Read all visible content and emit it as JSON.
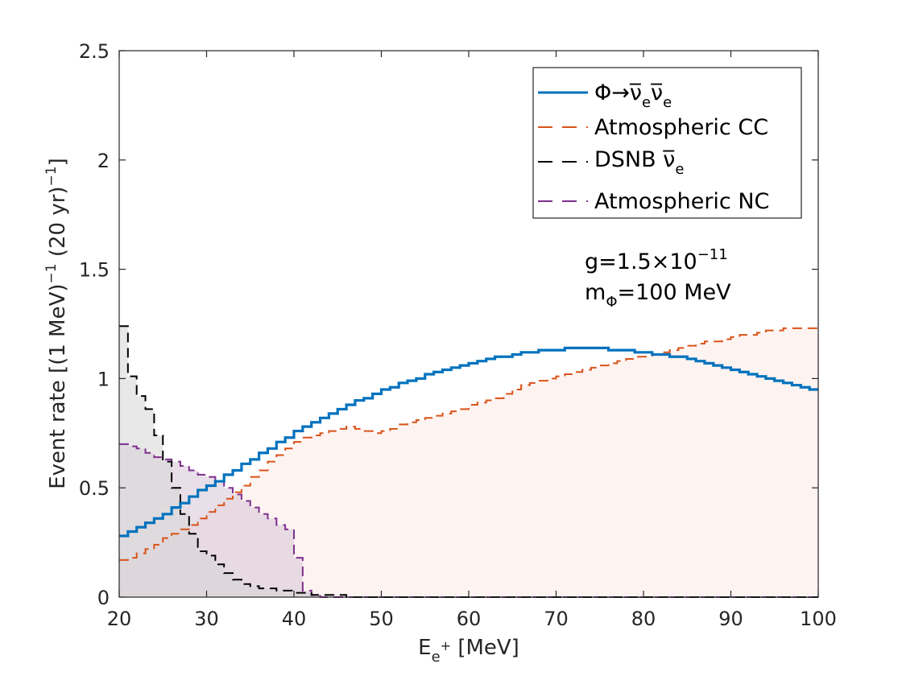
{
  "chart_data": {
    "type": "area",
    "title": "",
    "xlabel": {
      "base": "E",
      "sub": "e",
      "sup": "+",
      "rest": " [MeV]"
    },
    "ylabel": {
      "p1": "Event rate [(1 MeV)",
      "sup1": "−1",
      "p2": " (20 yr)",
      "sup2": "−1",
      "p3": "]"
    },
    "xlim": [
      20,
      100
    ],
    "ylim": [
      0,
      2.5
    ],
    "xticks": [
      20,
      30,
      40,
      50,
      60,
      70,
      80,
      90,
      100
    ],
    "yticks": [
      0,
      0.5,
      1,
      1.5,
      2,
      2.5
    ],
    "xtick_labels": [
      "20",
      "30",
      "40",
      "50",
      "60",
      "70",
      "80",
      "90",
      "100"
    ],
    "ytick_labels": [
      "0",
      "0.5",
      "1",
      "1.5",
      "2",
      "2.5"
    ],
    "grid": false,
    "legend_position": "top-right",
    "bin_width": 1,
    "series": [
      {
        "name": "atmospheric-cc",
        "legend": "Atmospheric CC",
        "color": "#D95319",
        "fill": "#FBEAE5",
        "dashed": true,
        "values": [
          0.17,
          0.18,
          0.2,
          0.22,
          0.24,
          0.27,
          0.29,
          0.31,
          0.33,
          0.36,
          0.39,
          0.42,
          0.45,
          0.48,
          0.51,
          0.55,
          0.58,
          0.62,
          0.65,
          0.68,
          0.71,
          0.73,
          0.74,
          0.75,
          0.76,
          0.77,
          0.78,
          0.77,
          0.76,
          0.75,
          0.76,
          0.77,
          0.79,
          0.8,
          0.81,
          0.82,
          0.83,
          0.84,
          0.85,
          0.86,
          0.88,
          0.89,
          0.9,
          0.91,
          0.93,
          0.95,
          0.97,
          0.98,
          0.99,
          1.0,
          1.01,
          1.02,
          1.03,
          1.04,
          1.05,
          1.06,
          1.07,
          1.08,
          1.09,
          1.1,
          1.1,
          1.11,
          1.12,
          1.13,
          1.14,
          1.15,
          1.16,
          1.17,
          1.17,
          1.18,
          1.19,
          1.2,
          1.2,
          1.21,
          1.22,
          1.22,
          1.23,
          1.23,
          1.23,
          1.23
        ]
      },
      {
        "name": "atmospheric-nc",
        "legend": "Atmospheric NC",
        "color": "#7E2F8E",
        "fill": "#D6C4D6",
        "dashed": true,
        "values": [
          0.7,
          0.69,
          0.68,
          0.66,
          0.64,
          0.63,
          0.62,
          0.6,
          0.58,
          0.56,
          0.55,
          0.53,
          0.5,
          0.47,
          0.44,
          0.41,
          0.38,
          0.36,
          0.33,
          0.31,
          0.18,
          0.03,
          0.01,
          0.0,
          0.0,
          0.0,
          0.0,
          0.0,
          0.0,
          0.0,
          0.0,
          0.0,
          0.0,
          0.0,
          0.0,
          0.0,
          0.0,
          0.0,
          0.0,
          0.0,
          0.0,
          0.0,
          0.0,
          0.0,
          0.0,
          0.0,
          0.0,
          0.0,
          0.0,
          0.0,
          0.0,
          0.0,
          0.0,
          0.0,
          0.0,
          0.0,
          0.0,
          0.0,
          0.0,
          0.0,
          0.0,
          0.0,
          0.0,
          0.0,
          0.0,
          0.0,
          0.0,
          0.0,
          0.0,
          0.0,
          0.0,
          0.0,
          0.0,
          0.0,
          0.0,
          0.0,
          0.0,
          0.0,
          0.0,
          0.0
        ]
      },
      {
        "name": "dsnb",
        "legend": "DSNB ν̅",
        "legend_sub": "e",
        "color": "#000000",
        "fill": "#D6D6D6",
        "dashed": true,
        "values": [
          1.24,
          1.01,
          0.92,
          0.86,
          0.74,
          0.62,
          0.5,
          0.38,
          0.29,
          0.21,
          0.19,
          0.15,
          0.11,
          0.08,
          0.06,
          0.05,
          0.04,
          0.04,
          0.03,
          0.03,
          0.02,
          0.02,
          0.01,
          0.01,
          0.01,
          0.01,
          0.0,
          0.0,
          0.0,
          0.0,
          0.0,
          0.0,
          0.0,
          0.0,
          0.0,
          0.0,
          0.0,
          0.0,
          0.0,
          0.0,
          0.0,
          0.0,
          0.0,
          0.0,
          0.0,
          0.0,
          0.0,
          0.0,
          0.0,
          0.0,
          0.0,
          0.0,
          0.0,
          0.0,
          0.0,
          0.0,
          0.0,
          0.0,
          0.0,
          0.0,
          0.0,
          0.0,
          0.0,
          0.0,
          0.0,
          0.0,
          0.0,
          0.0,
          0.0,
          0.0,
          0.0,
          0.0,
          0.0,
          0.0,
          0.0,
          0.0,
          0.0,
          0.0,
          0.0,
          0.0
        ]
      },
      {
        "name": "signal",
        "legend": "Φ→ν̅",
        "legend_sub": "e",
        "legend_mid": "ν̅",
        "legend_sub2": "e",
        "color": "#0072BD",
        "fill": "none",
        "dashed": false,
        "values": [
          0.28,
          0.3,
          0.32,
          0.34,
          0.36,
          0.38,
          0.41,
          0.43,
          0.46,
          0.49,
          0.51,
          0.53,
          0.56,
          0.58,
          0.61,
          0.63,
          0.66,
          0.68,
          0.71,
          0.73,
          0.76,
          0.78,
          0.8,
          0.82,
          0.84,
          0.86,
          0.88,
          0.9,
          0.91,
          0.93,
          0.95,
          0.96,
          0.98,
          0.99,
          1.0,
          1.02,
          1.03,
          1.04,
          1.05,
          1.06,
          1.07,
          1.08,
          1.09,
          1.1,
          1.1,
          1.11,
          1.12,
          1.12,
          1.13,
          1.13,
          1.13,
          1.14,
          1.14,
          1.14,
          1.14,
          1.14,
          1.13,
          1.13,
          1.13,
          1.12,
          1.12,
          1.11,
          1.11,
          1.1,
          1.1,
          1.09,
          1.08,
          1.07,
          1.06,
          1.05,
          1.04,
          1.03,
          1.02,
          1.01,
          1.0,
          0.99,
          0.98,
          0.97,
          0.96,
          0.95
        ]
      }
    ],
    "annotations": [
      {
        "base": "g=1.5×10",
        "sup": "−11"
      },
      {
        "base": "m",
        "sub": "Φ",
        "rest": "=100 MeV"
      }
    ]
  }
}
